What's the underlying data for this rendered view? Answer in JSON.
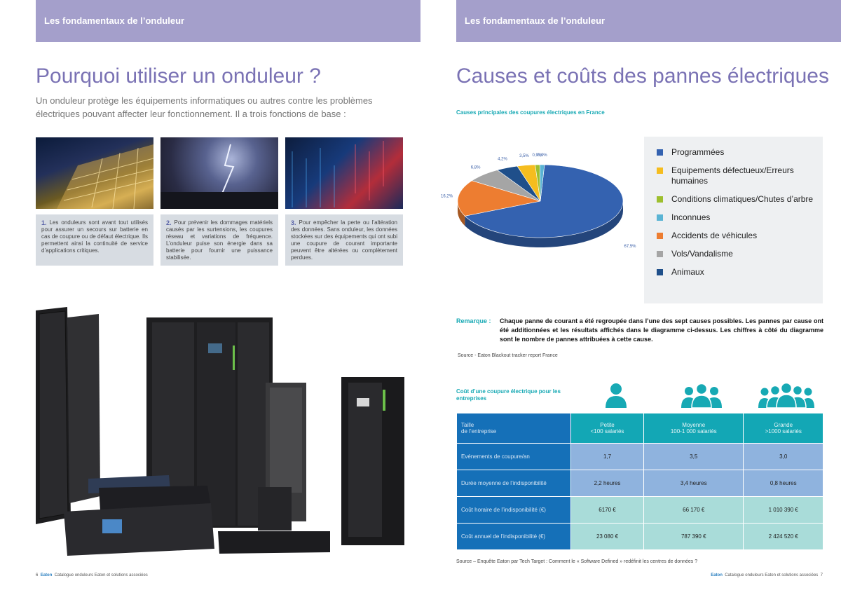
{
  "left_page": {
    "header": "Les fondamentaux de l’onduleur",
    "title": "Pourquoi utiliser un onduleur ?",
    "intro": "Un onduleur protège les équipements informatiques ou autres contre les problèmes électriques pouvant affecter leur fonctionnement. Il a trois fonctions de base :",
    "functions": [
      {
        "num": "1.",
        "text": "Les onduleurs sont avant tout utilisés pour assurer un secours sur batterie en cas de coupure ou de défaut électrique. Ils permettent ainsi la continuité de service d’applications critiques."
      },
      {
        "num": "2.",
        "text": "Pour prévenir les dommages matériels causés par les surtensions, les coupures réseau et variations de fréquence. L’onduleur puise son énergie dans sa batterie pour fournir une puissance stabilisée."
      },
      {
        "num": "3.",
        "text": "Pour empêcher la perte ou l’altération des données. Sans onduleur, les données stockées sur des équipements qui ont subi une coupure de courant importante peuvent être altérées ou complètement perdues."
      }
    ],
    "footer": {
      "page": "6",
      "brand": "Eaton",
      "text": "Catalogue onduleurs Eaton et solutions associées"
    }
  },
  "right_page": {
    "header": "Les fondamentaux de l’onduleur",
    "title": "Causes et coûts des pannes électriques",
    "chart_title": "Causes principales des coupures électriques en France",
    "remark_label": "Remarque :",
    "remark_text": "Chaque panne de courant a été regroupée dans l’une des sept causes possibles. Les pannes par cause ont été additionnées et les résultats affichés dans le diagramme ci-dessus. Les chiffres à côté du diagramme sont le nombre de pannes attribuées à cette cause.",
    "source1": "Source - Eaton Blackout tracker report France",
    "cost_title": "Coût d’une coupure électrique pour les entreprises",
    "table": {
      "header": [
        "Taille\nde l’entreprise",
        "Petite\n<100 salariés",
        "Moyenne\n100-1 000 salariés",
        "Grande\n>1000 salariés"
      ],
      "rows": [
        [
          "Evénements de coupure/an",
          "1,7",
          "3,5",
          "3,0"
        ],
        [
          "Durée moyenne de l’indisponibilité",
          "2,2 heures",
          "3,4 heures",
          "0,8 heures"
        ],
        [
          "Coût horaire de l’indisponibilité (€)",
          "6170 €",
          "66 170 €",
          "1 010 390 €"
        ],
        [
          "Coût annuel de l’indisponibilité (€)",
          "23 080 €",
          "787 390 €",
          "2 424 520 €"
        ]
      ]
    },
    "source2": "Source – Enquête Eaton par Tech Target : Comment le « Software Defined » redéfinit les centres de données ?",
    "footer": {
      "page": "7",
      "brand": "Eaton",
      "text": "Catalogue onduleurs Eaton et solutions associées"
    }
  },
  "chart_data": {
    "type": "pie",
    "title": "Causes principales des coupures électriques en France",
    "categories": [
      "Programmées",
      "Equipements défectueux/Erreurs humaines",
      "Conditions climatiques/Chutes d’arbre",
      "Inconnues",
      "Accidents de véhicules",
      "Vols/Vandalisme",
      "Animaux"
    ],
    "values": [
      67.5,
      3.5,
      0.9,
      0.9,
      16.2,
      6.8,
      4.2
    ],
    "labels": [
      "67,5%",
      "3,5%",
      "0,9%",
      "0,9%",
      "16,2%",
      "6,8%",
      "4,2%"
    ],
    "colors": [
      "#3462b0",
      "#f5bd1f",
      "#9dbf2e",
      "#5ab4d4",
      "#ed7d31",
      "#a5a5a5",
      "#1f4f8a"
    ],
    "legend_position": "right"
  }
}
